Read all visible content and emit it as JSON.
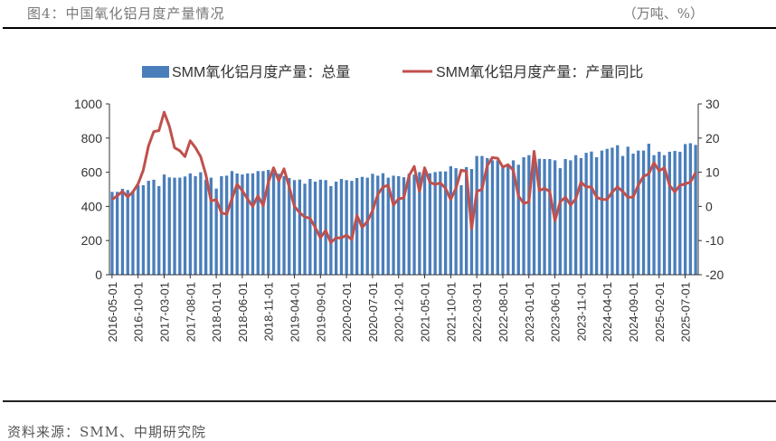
{
  "header": {
    "title": "图4：中国氧化铝月度产量情况",
    "unit": "（万吨、%）"
  },
  "source": "资料来源：SMM、中期研究院",
  "colors": {
    "bar": "#4A7EBB",
    "line": "#C0504D"
  },
  "chart_data": {
    "type": "bar+line",
    "title": "",
    "legend_position": "top",
    "x_start": "2016-05",
    "x_end": "2025-09",
    "x_tick_labels": [
      "2016-05-01",
      "2016-10-01",
      "2017-03-01",
      "2017-08-01",
      "2018-01-01",
      "2018-06-01",
      "2018-11-01",
      "2019-04-01",
      "2019-09-01",
      "2020-02-01",
      "2020-07-01",
      "2020-12-01",
      "2021-05-01",
      "2021-10-01",
      "2022-03-01",
      "2022-08-01",
      "2023-01-01",
      "2023-06-01",
      "2023-11-01",
      "2024-04-01",
      "2024-09-01",
      "2025-02-01",
      "2025-07-01"
    ],
    "y_left": {
      "range": [
        0,
        1000
      ],
      "ticks": [
        "0",
        "200",
        "400",
        "600",
        "800",
        "1000"
      ]
    },
    "y_right": {
      "range": [
        -20,
        30
      ],
      "ticks": [
        "-20",
        "-10",
        "0",
        "10",
        "20",
        "30"
      ]
    },
    "series": [
      {
        "name": "SMM氧化铝月度产量：总量",
        "type": "bar",
        "axis": "left",
        "values": [
          485,
          485,
          503,
          496,
          490,
          524,
          524,
          550,
          556,
          519,
          587,
          570,
          568,
          568,
          575,
          593,
          577,
          600,
          556,
          568,
          504,
          577,
          580,
          607,
          593,
          587,
          593,
          593,
          607,
          607,
          614,
          600,
          591,
          577,
          566,
          554,
          557,
          533,
          561,
          545,
          556,
          554,
          519,
          545,
          561,
          554,
          550,
          566,
          573,
          568,
          591,
          580,
          594,
          568,
          580,
          577,
          571,
          591,
          586,
          601,
          608,
          594,
          601,
          605,
          605,
          635,
          624,
          524,
          630,
          619,
          695,
          695,
          683,
          670,
          670,
          630,
          644,
          670,
          644,
          688,
          700,
          670,
          679,
          677,
          677,
          670,
          624,
          677,
          670,
          700,
          683,
          714,
          721,
          688,
          727,
          737,
          744,
          758,
          695,
          750,
          709,
          727,
          727,
          767,
          700,
          720,
          700,
          720,
          725,
          720,
          765,
          770,
          760
        ]
      },
      {
        "name": "SMM氧化铝月度产量：产量同比",
        "type": "line",
        "axis": "right",
        "values": [
          2.0,
          3.1,
          4.4,
          2.8,
          4.2,
          6.6,
          10.6,
          17.7,
          21.9,
          22.2,
          27.6,
          23.4,
          17.2,
          16.3,
          14.6,
          19.2,
          17.2,
          14.6,
          9.3,
          1.6,
          2.0,
          -1.9,
          -2.3,
          2.2,
          6.5,
          4.6,
          2.2,
          0,
          3.1,
          0.2,
          7.1,
          11.3,
          7.5,
          11.0,
          5.7,
          0,
          -1.8,
          -3.1,
          -3.5,
          -6.2,
          -9.2,
          -7.0,
          -10.6,
          -9.2,
          -9.2,
          -8.4,
          -9.7,
          -2.6,
          -6.2,
          -4.4,
          -1.3,
          3.5,
          5.7,
          6.2,
          0.4,
          2.2,
          2.5,
          9.0,
          11.7,
          4.4,
          11.3,
          7.1,
          6.4,
          6.9,
          5.3,
          2.0,
          5.3,
          10.6,
          10.3,
          -6.6,
          4.4,
          5.0,
          11.9,
          14.3,
          14.1,
          11.5,
          12.2,
          10.6,
          3.1,
          0.9,
          1.3,
          16.1,
          4.6,
          5.3,
          4.4,
          -4.2,
          1.3,
          2.7,
          0.4,
          2.2,
          7.1,
          5.7,
          5.7,
          2.7,
          2.0,
          2.0,
          4.2,
          5.7,
          4.4,
          2.7,
          2.7,
          6.2,
          8.8,
          9.5,
          12.8,
          10.4,
          11.3,
          6.2,
          4.2,
          6.2,
          6.6,
          7.1,
          9.9
        ]
      }
    ]
  }
}
